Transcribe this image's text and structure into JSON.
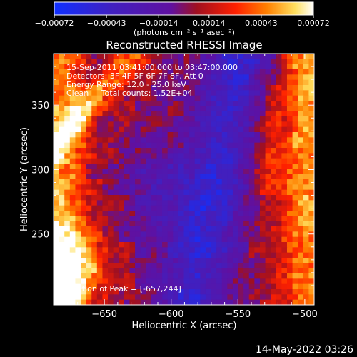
{
  "chart_data": {
    "type": "heatmap",
    "title": "Reconstructed RHESSI Image",
    "xlabel": "Heliocentric X (arcsec)",
    "ylabel": "Heliocentric Y (arcsec)",
    "xlim": [
      -688,
      -493
    ],
    "ylim": [
      195,
      390
    ],
    "x_ticks": [
      -650,
      -600,
      -550,
      -500
    ],
    "x_tick_labels": [
      "−650",
      "−600",
      "−550",
      "−500"
    ],
    "y_ticks": [
      250,
      300,
      350
    ],
    "y_tick_labels": [
      "250",
      "300",
      "350"
    ],
    "colorbar": {
      "min": -0.00072,
      "max": 0.00072,
      "ticks": [
        -0.00072,
        -0.00043,
        -0.00014,
        0.00014,
        0.00043,
        0.00072
      ],
      "tick_labels": [
        "−0.00072",
        "−0.00043",
        "−0.00014",
        "0.00014",
        "0.00043",
        "0.00072"
      ],
      "unit_label": "(photons cm⁻² s⁻¹ asec⁻²)",
      "colors": [
        "#1030ff",
        "#4020c0",
        "#6010a0",
        "#a01020",
        "#ff2000",
        "#ff8000",
        "#ffe060",
        "#ffffff"
      ]
    },
    "annotations": [
      "15-Sep-2011 03:41:00.000 to 03:47:00.000",
      "Detectors: 3F 4F 5F 6F 7F 8F, Att 0",
      "Energy Range: 12.0 - 25.0 keV",
      "Clean     Total counts: 1.52E+04",
      "Position of Peak = [-657,244]"
    ]
  },
  "footer": {
    "date": "14-May-2022 03:26"
  }
}
